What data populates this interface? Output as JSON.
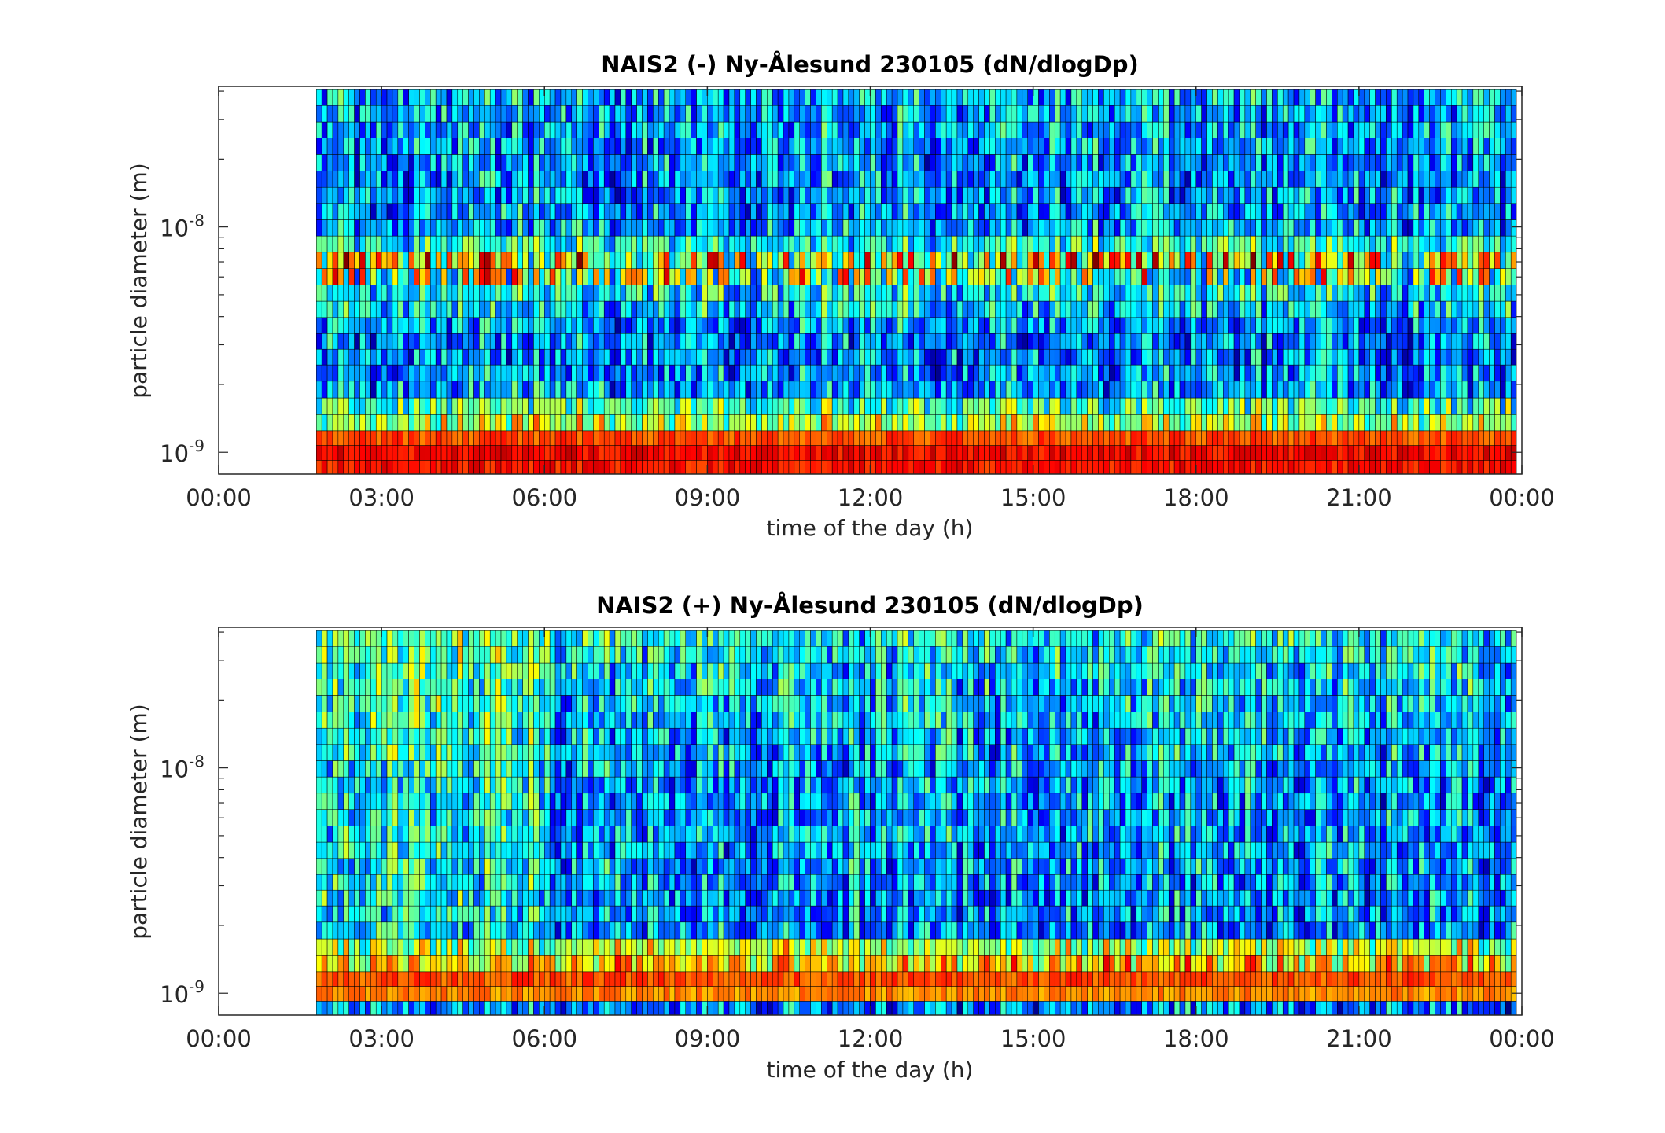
{
  "chart_data": [
    {
      "type": "heatmap",
      "title": "NAIS2 (-) Ny-Ålesund 230105 (dN/dlogDp)",
      "xlabel": "time of the day (h)",
      "ylabel": "particle diameter (m)",
      "x_ticks": [
        "00:00",
        "03:00",
        "06:00",
        "09:00",
        "12:00",
        "15:00",
        "18:00",
        "21:00",
        "00:00"
      ],
      "y_ticks": [
        {
          "base": "10",
          "exp": "-9",
          "value": 1e-09
        },
        {
          "base": "10",
          "exp": "-8",
          "value": 1e-08
        }
      ],
      "xlim_hours": [
        0,
        24
      ],
      "ylim_m": [
        8e-10,
        4.2e-08
      ],
      "y_scale": "log",
      "data_start_hour": 1.8,
      "data_end_hour": 23.9,
      "colormap": "jet",
      "diameter_bins_m": [
        8.5e-10,
        1e-09,
        1.15e-09,
        1.35e-09,
        1.6e-09,
        1.9e-09,
        2.25e-09,
        2.65e-09,
        3.1e-09,
        3.65e-09,
        4.3e-09,
        5.1e-09,
        6e-09,
        7.1e-09,
        8.4e-09,
        9.9e-09,
        1.17e-08,
        1.38e-08,
        1.63e-08,
        1.93e-08,
        2.28e-08,
        2.69e-08,
        3.18e-08,
        3.76e-08
      ],
      "level_profile": [
        0.86,
        0.88,
        0.8,
        0.56,
        0.45,
        0.28,
        0.26,
        0.25,
        0.26,
        0.27,
        0.34,
        0.38,
        0.72,
        0.8,
        0.4,
        0.3,
        0.28,
        0.27,
        0.27,
        0.27,
        0.28,
        0.28,
        0.29,
        0.3
      ],
      "notes": "Bottom three size bins show high concentrations (orange-red) for the whole measured period; a recurring band of high concentration near 6-8e-9 m; remaining bins mostly low (blue) with cyan/yellow variability."
    },
    {
      "type": "heatmap",
      "title": "NAIS2 (+) Ny-Ålesund 230105 (dN/dlogDp)",
      "xlabel": "time of the day (h)",
      "ylabel": "particle diameter (m)",
      "x_ticks": [
        "00:00",
        "03:00",
        "06:00",
        "09:00",
        "12:00",
        "15:00",
        "18:00",
        "21:00",
        "00:00"
      ],
      "y_ticks": [
        {
          "base": "10",
          "exp": "-9",
          "value": 1e-09
        },
        {
          "base": "10",
          "exp": "-8",
          "value": 1e-08
        }
      ],
      "xlim_hours": [
        0,
        24
      ],
      "ylim_m": [
        8e-10,
        4.2e-08
      ],
      "y_scale": "log",
      "data_start_hour": 1.8,
      "data_end_hour": 23.9,
      "colormap": "jet",
      "diameter_bins_m": [
        8.5e-10,
        1e-09,
        1.15e-09,
        1.35e-09,
        1.6e-09,
        1.9e-09,
        2.25e-09,
        2.65e-09,
        3.1e-09,
        3.65e-09,
        4.3e-09,
        5.1e-09,
        6e-09,
        7.1e-09,
        8.4e-09,
        9.9e-09,
        1.17e-08,
        1.38e-08,
        1.63e-08,
        1.93e-08,
        2.28e-08,
        2.69e-08,
        3.18e-08,
        3.76e-08
      ],
      "level_profile": [
        0.25,
        0.74,
        0.8,
        0.66,
        0.55,
        0.26,
        0.26,
        0.27,
        0.27,
        0.28,
        0.28,
        0.28,
        0.28,
        0.28,
        0.28,
        0.29,
        0.3,
        0.31,
        0.32,
        0.33,
        0.34,
        0.35,
        0.36,
        0.38
      ],
      "notes": "Bins 1.0-1.6e-9 m show moderately high concentrations (yellow-orange) after ~06:00; lowest bin and upper bins mostly low (blue/cyan), with more cyan/yellow before 06:00."
    }
  ]
}
